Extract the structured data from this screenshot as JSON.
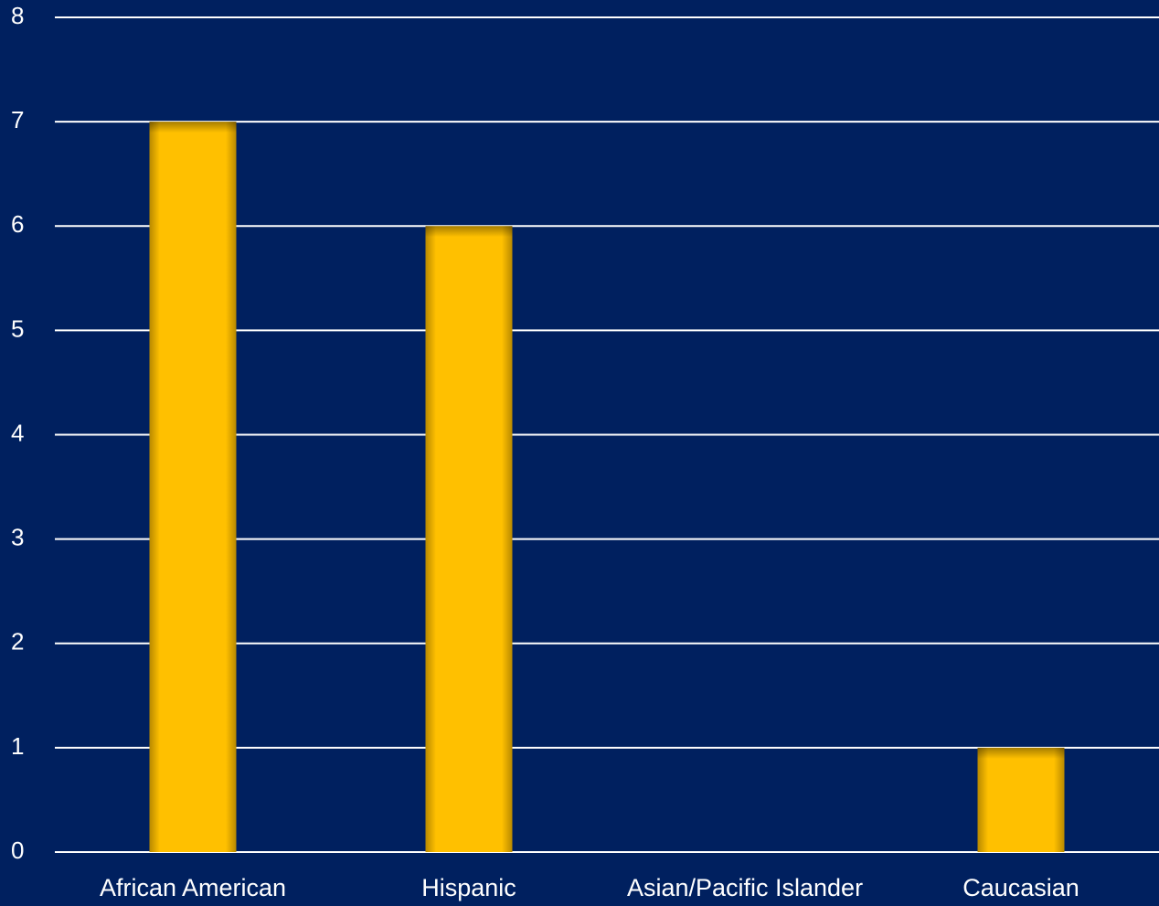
{
  "chart_data": {
    "type": "bar",
    "categories": [
      "African American",
      "Hispanic",
      "Asian/Pacific Islander",
      "Caucasian"
    ],
    "values": [
      7,
      6,
      0,
      1
    ],
    "yticks": [
      "0",
      "1",
      "2",
      "3",
      "4",
      "5",
      "6",
      "7",
      "8"
    ],
    "ylim": [
      0,
      8
    ],
    "grid": true,
    "legend": "none",
    "colors": {
      "background": "#00205f",
      "bar": "#ffc000",
      "bar_edge": "#b88900",
      "gridline": "#ffffff",
      "text": "#ffffff"
    }
  }
}
